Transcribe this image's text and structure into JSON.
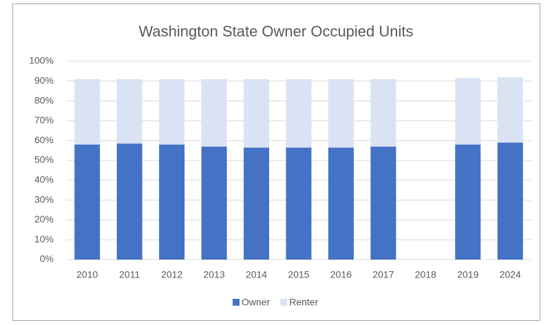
{
  "chart_data": {
    "type": "stacked_bar",
    "title": "Washington State Owner Occupied Units",
    "categories": [
      "2010",
      "2011",
      "2012",
      "2013",
      "2014",
      "2015",
      "2016",
      "2017",
      "2018",
      "2019",
      "2024"
    ],
    "series": [
      {
        "name": "Owner",
        "color": "#4472c4",
        "values": [
          58,
          58.5,
          58,
          57,
          56.5,
          56.5,
          56.5,
          57,
          null,
          58,
          59
        ]
      },
      {
        "name": "Renter",
        "color": "#dae3f3",
        "values": [
          33,
          32.5,
          33,
          34,
          34.5,
          34.5,
          34.5,
          34,
          null,
          33.5,
          33
        ]
      }
    ],
    "ylim": [
      0,
      100
    ],
    "yticks": [
      {
        "value": 0,
        "label": "0%"
      },
      {
        "value": 10,
        "label": "10%"
      },
      {
        "value": 20,
        "label": "20%"
      },
      {
        "value": 30,
        "label": "30%"
      },
      {
        "value": 40,
        "label": "40%"
      },
      {
        "value": 50,
        "label": "50%"
      },
      {
        "value": 60,
        "label": "60%"
      },
      {
        "value": 70,
        "label": "70%"
      },
      {
        "value": 80,
        "label": "80%"
      },
      {
        "value": 90,
        "label": "90%"
      },
      {
        "value": 100,
        "label": "100%"
      }
    ],
    "grid": true,
    "legend": "bottom"
  }
}
